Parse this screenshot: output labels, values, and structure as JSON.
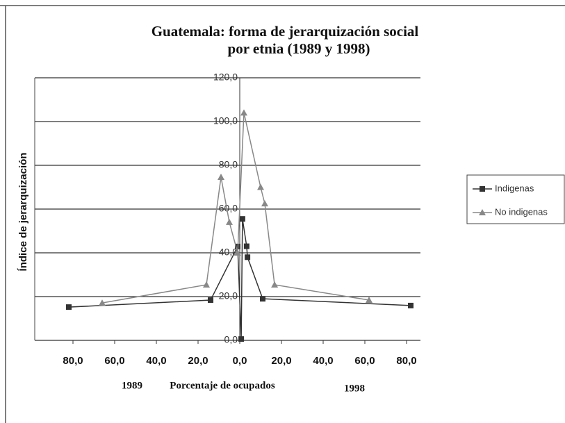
{
  "chart_data": {
    "type": "line",
    "title": [
      "Guatemala: forma de jerarquización social",
      "por etnia (1989 y 1998)"
    ],
    "y_label": "Índice de jerarquización",
    "x_label": "Porcentaje de ocupados",
    "x_left_label": "1989",
    "x_right_label": "1998",
    "xlim": [
      -90,
      90
    ],
    "ylim": [
      0,
      120
    ],
    "xticks": [
      {
        "value": -80,
        "label": "80,0"
      },
      {
        "value": -60,
        "label": "60,0"
      },
      {
        "value": -40,
        "label": "40,0"
      },
      {
        "value": -20,
        "label": "20,0"
      },
      {
        "value": 0,
        "label": "0,0"
      },
      {
        "value": 20,
        "label": "20,0"
      },
      {
        "value": 40,
        "label": "40,0"
      },
      {
        "value": 60,
        "label": "60,0"
      },
      {
        "value": 80,
        "label": "80,0"
      }
    ],
    "yticks": [
      {
        "value": 0,
        "label": "0,0"
      },
      {
        "value": 20,
        "label": "20,0"
      },
      {
        "value": 40,
        "label": "40,0"
      },
      {
        "value": 60,
        "label": "60,0"
      },
      {
        "value": 80,
        "label": "80,0"
      },
      {
        "value": 100,
        "label": "100,0"
      },
      {
        "value": 120,
        "label": "120,0"
      }
    ],
    "grid": true,
    "legend": "right",
    "series": [
      {
        "name": "Indigenas",
        "color": "#333333",
        "marker": "square",
        "x": [
          -82,
          -14,
          -1,
          0.7,
          1.3,
          3.3,
          3.7,
          11,
          82
        ],
        "values": [
          15.2,
          18.4,
          42.9,
          0.6,
          55.5,
          43,
          38,
          19,
          15.9
        ]
      },
      {
        "name": "No indigenas",
        "color": "#888888",
        "marker": "triangle",
        "x": [
          -66,
          -16,
          -9,
          -5,
          -1,
          2,
          10,
          12,
          16.7,
          62
        ],
        "values": [
          17.1,
          25.4,
          74.6,
          54,
          40,
          104,
          70,
          62.5,
          25.4,
          18.4
        ]
      }
    ]
  }
}
